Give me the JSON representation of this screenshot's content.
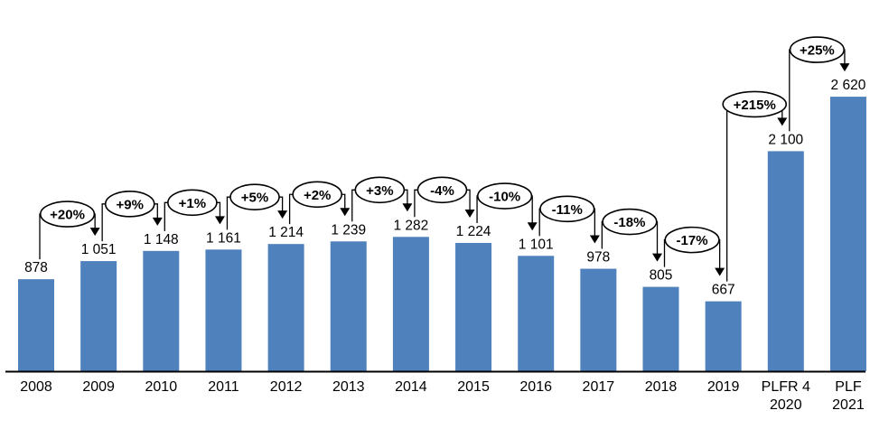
{
  "chart_data": {
    "type": "bar",
    "title": "",
    "xlabel": "",
    "ylabel": "",
    "categories": [
      "2008",
      "2009",
      "2010",
      "2011",
      "2012",
      "2013",
      "2014",
      "2015",
      "2016",
      "2017",
      "2018",
      "2019",
      "PLFR 4\n2020",
      "PLF\n2021"
    ],
    "values": [
      878,
      1051,
      1148,
      1161,
      1214,
      1239,
      1282,
      1224,
      1101,
      978,
      805,
      667,
      2100,
      2620
    ],
    "value_labels": [
      "878",
      "1 051",
      "1 148",
      "1 161",
      "1 214",
      "1 239",
      "1 282",
      "1 224",
      "1 101",
      "978",
      "805",
      "667",
      "2 100",
      "2 620"
    ],
    "pct_changes": [
      "+20%",
      "+9%",
      "+1%",
      "+5%",
      "+2%",
      "+3%",
      "-4%",
      "-10%",
      "-11%",
      "-18%",
      "-17%",
      "+215%",
      "+25%"
    ],
    "annotation_style": "ellipse-bubble-with-elbow-arrow",
    "bar_color": "#4F81BD",
    "axis_color": "#000000",
    "text_color": "#000000",
    "bubble_fill": "#FFFFFF",
    "bubble_stroke": "#000000",
    "ylim": [
      0,
      2700
    ],
    "grid": false,
    "legend": false
  }
}
